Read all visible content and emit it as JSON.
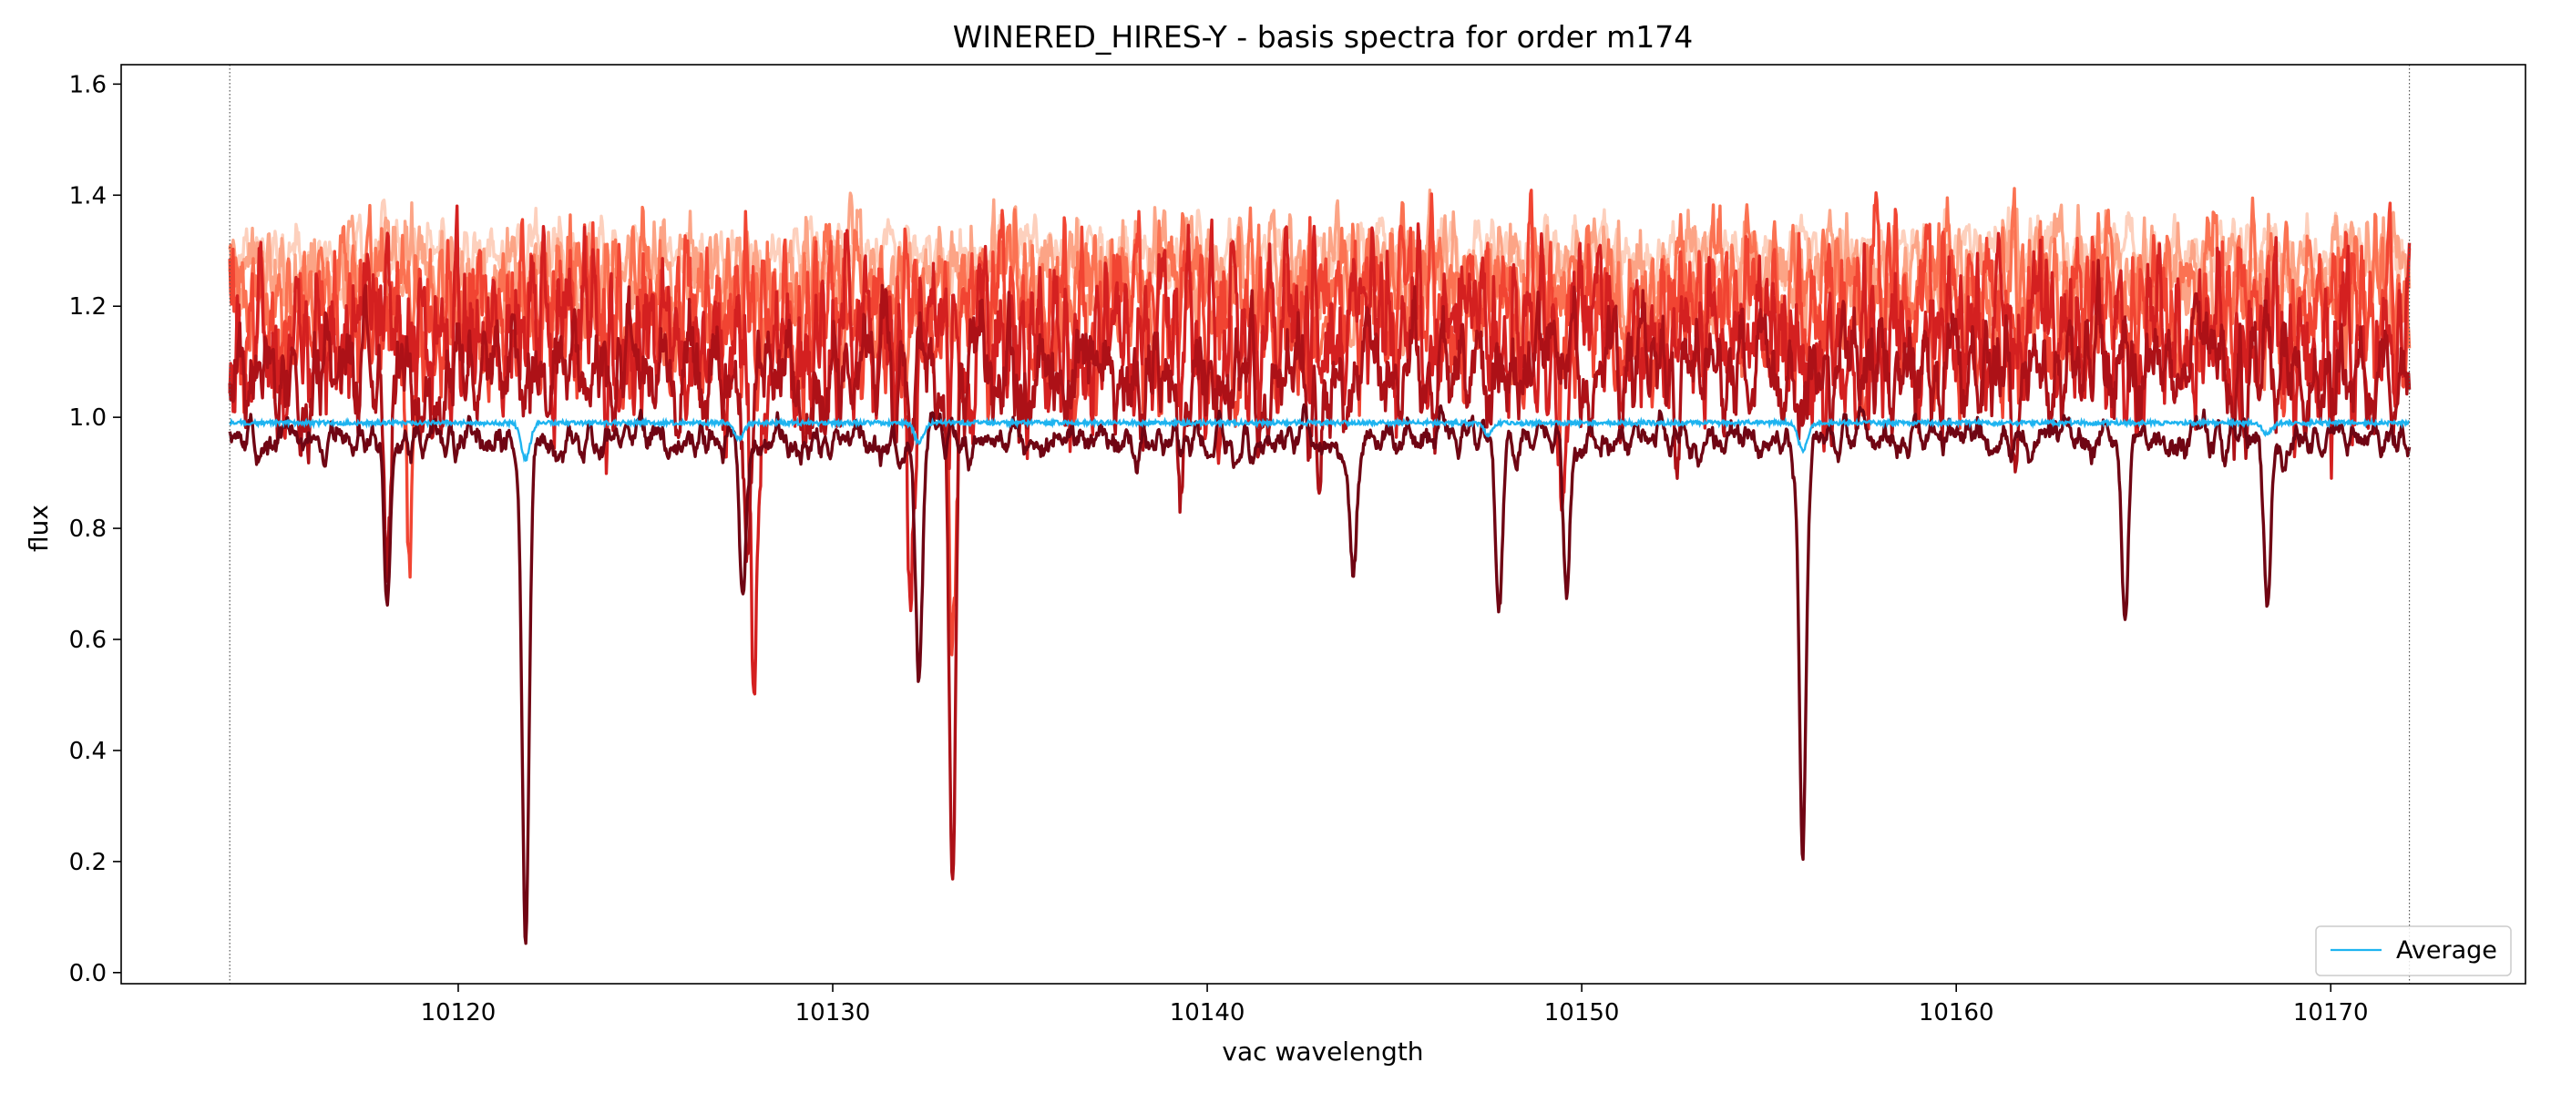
{
  "chart_data": {
    "type": "line",
    "title": "WINERED_HIRES-Y - basis spectra for order m174",
    "xlabel": "vac wavelength",
    "ylabel": "flux",
    "xlim": [
      10111,
      10175.2
    ],
    "ylim": [
      -0.02,
      1.635
    ],
    "xticks": [
      10120,
      10130,
      10140,
      10150,
      10160,
      10170
    ],
    "yticks": [
      0.0,
      0.2,
      0.4,
      0.6,
      0.8,
      1.0,
      1.2,
      1.4,
      1.6
    ],
    "x_range": [
      10113.9,
      10172.1
    ],
    "vertical_markers": [
      10113.9,
      10172.1
    ],
    "grid": false,
    "legend_position": "lower-right",
    "colors": {
      "basis": [
        "#fdd0bd",
        "#fca486",
        "#fb7252",
        "#f14432",
        "#d42020",
        "#ad1117",
        "#700513"
      ],
      "average": "#1fb4f0",
      "marker": "#555555"
    },
    "series": [
      {
        "name": "Average",
        "baseline": 0.99,
        "lines": [
          [
            10121.8,
            0.065
          ],
          [
            10127.5,
            0.03
          ],
          [
            10132.3,
            0.035
          ],
          [
            10147.5,
            0.02
          ],
          [
            10155.9,
            0.05
          ],
          [
            10168.3,
            0.02
          ]
        ]
      },
      {
        "color_index": 6,
        "baseline": 0.96,
        "scatter": 0.035,
        "lines": [
          [
            10118.1,
            0.3
          ],
          [
            10121.8,
            0.94
          ],
          [
            10127.6,
            0.3
          ],
          [
            10132.3,
            0.43
          ],
          [
            10143.9,
            0.24
          ],
          [
            10147.8,
            0.34
          ],
          [
            10149.6,
            0.28
          ],
          [
            10155.9,
            0.73
          ],
          [
            10164.5,
            0.3
          ],
          [
            10168.3,
            0.31
          ]
        ]
      },
      {
        "color_index": 5,
        "baseline": 1.08,
        "scatter": 0.11,
        "lines": [
          [
            10118.1,
            0.36
          ],
          [
            10127.7,
            0.42
          ],
          [
            10133.2,
            0.95
          ],
          [
            10139.3,
            0.25
          ],
          [
            10143.0,
            0.22
          ]
        ]
      },
      {
        "color_index": 4,
        "baseline": 1.14,
        "scatter": 0.12,
        "lines": [
          [
            10127.9,
            0.7
          ],
          [
            10132.1,
            0.4
          ],
          [
            10149.5,
            0.3
          ]
        ]
      },
      {
        "color_index": 3,
        "baseline": 1.18,
        "scatter": 0.12,
        "lines": [
          [
            10118.7,
            0.4
          ],
          [
            10133.2,
            0.65
          ]
        ]
      },
      {
        "color_index": 2,
        "baseline": 1.22,
        "scatter": 0.1,
        "lines": []
      },
      {
        "color_index": 1,
        "baseline": 1.26,
        "scatter": 0.08,
        "lines": []
      },
      {
        "color_index": 0,
        "baseline": 1.29,
        "scatter": 0.05,
        "lines": []
      }
    ]
  }
}
